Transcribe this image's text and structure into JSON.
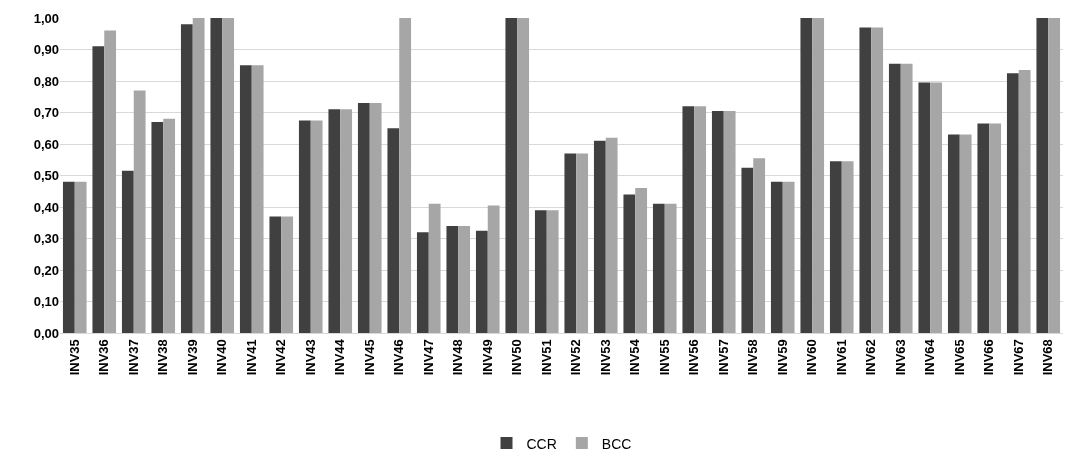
{
  "chart_data": {
    "type": "bar",
    "categories": [
      "INV35",
      "INV36",
      "INV37",
      "INV38",
      "INV39",
      "INV40",
      "INV41",
      "INV42",
      "INV43",
      "INV44",
      "INV45",
      "INV46",
      "INV47",
      "INV48",
      "INV49",
      "INV50",
      "INV51",
      "INV52",
      "INV53",
      "INV54",
      "INV55",
      "INV56",
      "INV57",
      "INV58",
      "INV59",
      "INV60",
      "INV61",
      "INV62",
      "INV63",
      "INV64",
      "INV65",
      "INV66",
      "INV67",
      "INV68"
    ],
    "series": [
      {
        "name": "CCR",
        "color": "#404040",
        "values": [
          0.48,
          0.91,
          0.515,
          0.67,
          0.98,
          1.0,
          0.85,
          0.37,
          0.675,
          0.71,
          0.73,
          0.65,
          0.32,
          0.34,
          0.325,
          1.0,
          0.39,
          0.57,
          0.61,
          0.44,
          0.41,
          0.72,
          0.705,
          0.525,
          0.48,
          1.0,
          0.545,
          0.97,
          0.855,
          0.795,
          0.63,
          0.665,
          0.825,
          1.0
        ]
      },
      {
        "name": "BCC",
        "color": "#a6a6a6",
        "values": [
          0.48,
          0.96,
          0.77,
          0.68,
          1.0,
          1.0,
          0.85,
          0.37,
          0.675,
          0.71,
          0.73,
          1.0,
          0.41,
          0.34,
          0.405,
          1.0,
          0.39,
          0.57,
          0.62,
          0.46,
          0.41,
          0.72,
          0.705,
          0.555,
          0.48,
          1.0,
          0.545,
          0.97,
          0.855,
          0.795,
          0.63,
          0.665,
          0.835,
          1.0
        ]
      }
    ],
    "ylim": [
      0,
      1
    ],
    "yticks": [
      {
        "value": 0,
        "label": "0,00"
      },
      {
        "value": 0.1,
        "label": "0,10"
      },
      {
        "value": 0.2,
        "label": "0,20"
      },
      {
        "value": 0.3,
        "label": "0,30"
      },
      {
        "value": 0.4,
        "label": "0,40"
      },
      {
        "value": 0.5,
        "label": "0,50"
      },
      {
        "value": 0.6,
        "label": "0,60"
      },
      {
        "value": 0.7,
        "label": "0,70"
      },
      {
        "value": 0.8,
        "label": "0,80"
      },
      {
        "value": 0.9,
        "label": "0,90"
      },
      {
        "value": 1,
        "label": "1,00"
      }
    ],
    "grid": "y",
    "legend": "bottom"
  }
}
